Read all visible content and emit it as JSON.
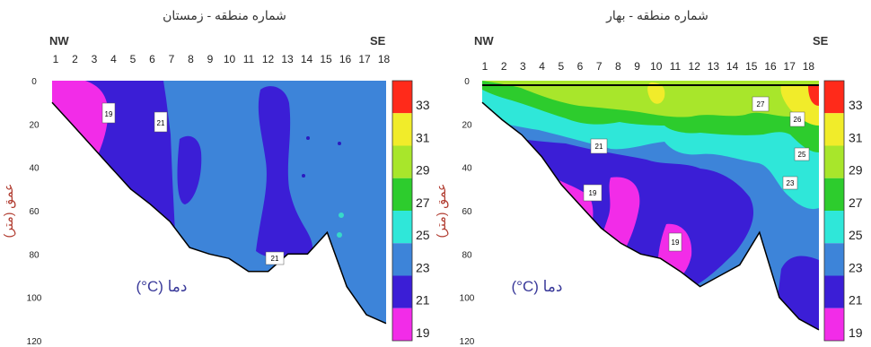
{
  "chart_data": [
    {
      "type": "heatmap",
      "title": "شماره منطقه - زمستان",
      "direction_left": "NW",
      "direction_right": "SE",
      "x_ticks": [
        "1",
        "2",
        "3",
        "4",
        "5",
        "6",
        "7",
        "8",
        "9",
        "10",
        "11",
        "12",
        "13",
        "14",
        "15",
        "16",
        "17",
        "18"
      ],
      "ylabel": "عمق (متر)",
      "y_ticks": [
        "0",
        "20",
        "40",
        "60",
        "80",
        "100",
        "120"
      ],
      "ylim": [
        0,
        120
      ],
      "unit_label": "(°C) دما",
      "colorbar_ticks": [
        "33",
        "31",
        "29",
        "27",
        "25",
        "23",
        "21",
        "19"
      ],
      "bottom_depth_m": [
        10,
        20,
        30,
        40,
        50,
        57,
        65,
        77,
        80,
        82,
        88,
        88,
        80,
        80,
        70,
        95,
        108,
        112
      ],
      "zones": [
        {
          "temp": 23,
          "region": "outer",
          "points": []
        },
        {
          "temp": 21,
          "region": "west-large",
          "points": []
        },
        {
          "temp": 19,
          "region": "nw-corner",
          "points": []
        }
      ],
      "isotherm_labels": [
        "19",
        "21",
        "21"
      ]
    },
    {
      "type": "heatmap",
      "title": "شماره منطقه - بهار",
      "direction_left": "NW",
      "direction_right": "SE",
      "x_ticks": [
        "1",
        "2",
        "3",
        "4",
        "5",
        "6",
        "7",
        "8",
        "9",
        "10",
        "11",
        "12",
        "13",
        "14",
        "15",
        "16",
        "17",
        "18"
      ],
      "ylabel": "عمق (متر)",
      "y_ticks": [
        "0",
        "20",
        "40",
        "60",
        "80",
        "100",
        "120"
      ],
      "ylim": [
        0,
        120
      ],
      "unit_label": "(°C) دما",
      "colorbar_ticks": [
        "33",
        "31",
        "29",
        "27",
        "25",
        "23",
        "21",
        "19"
      ],
      "bottom_depth_m": [
        10,
        18,
        25,
        35,
        48,
        58,
        68,
        75,
        80,
        82,
        88,
        95,
        90,
        85,
        70,
        100,
        110,
        115
      ],
      "isotherm_labels": [
        "27",
        "26",
        "21",
        "25",
        "23",
        "19",
        "19"
      ]
    }
  ]
}
